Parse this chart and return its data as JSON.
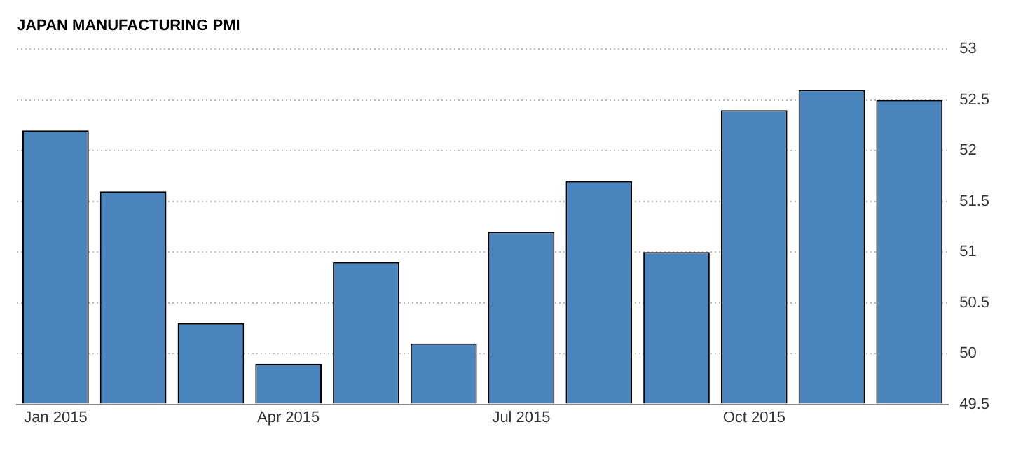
{
  "chart_data": {
    "type": "bar",
    "title": "JAPAN MANUFACTURING PMI",
    "categories": [
      "Jan 2015",
      null,
      null,
      "Apr 2015",
      null,
      null,
      "Jul 2015",
      null,
      null,
      "Oct 2015",
      null,
      null
    ],
    "values": [
      52.2,
      51.6,
      50.3,
      49.9,
      50.9,
      50.1,
      51.2,
      51.7,
      51.0,
      52.4,
      52.6,
      52.5
    ],
    "color": "#4a84bc",
    "ylim": [
      49.5,
      53
    ],
    "yticks": [
      49.5,
      50,
      50.5,
      51,
      51.5,
      52,
      52.5,
      53
    ],
    "grid": "y",
    "legend": false
  }
}
